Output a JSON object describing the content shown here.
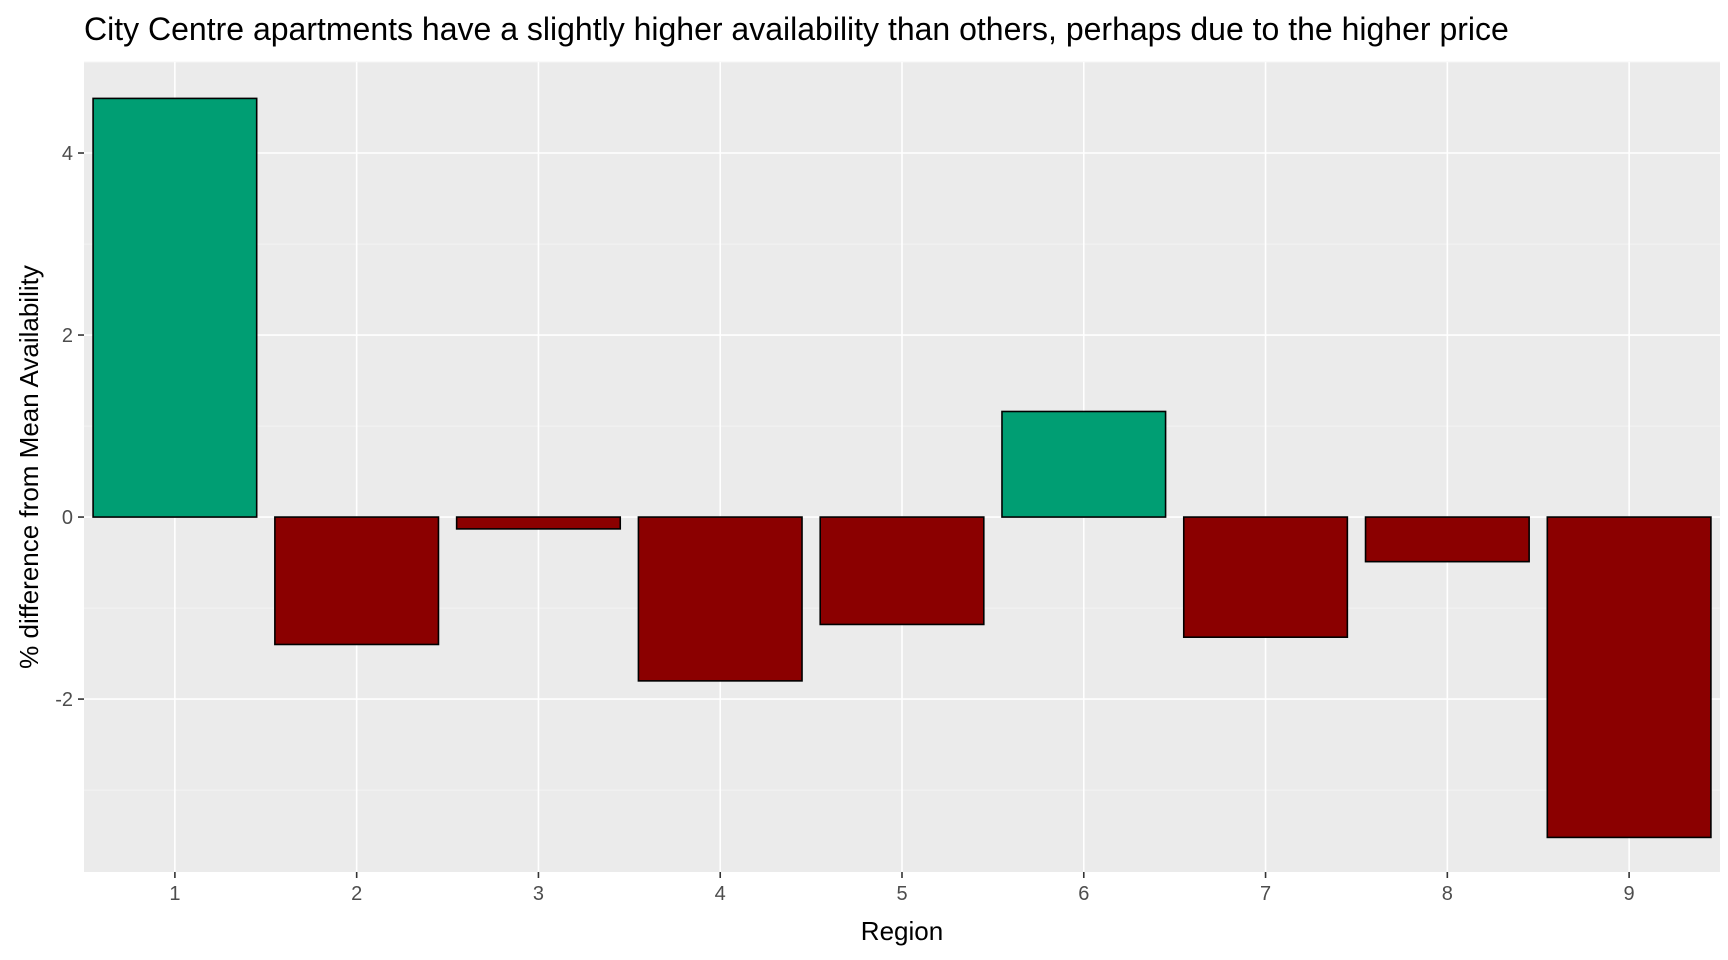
{
  "chart_data": {
    "type": "bar",
    "title": "City Centre apartments have a slightly higher availability than others, perhaps due to the higher price",
    "xlabel": "Region",
    "ylabel": "% difference from Mean Availability",
    "categories": [
      "1",
      "2",
      "3",
      "4",
      "5",
      "6",
      "7",
      "8",
      "9"
    ],
    "values": [
      4.6,
      -1.4,
      -0.13,
      -1.8,
      -1.18,
      1.16,
      -1.32,
      -0.49,
      -3.52
    ],
    "ylim": [
      -3.9,
      5.0
    ],
    "yticks": [
      -2,
      0,
      2,
      4
    ],
    "ytick_labels": [
      "-2",
      "0",
      "2",
      "4"
    ],
    "grid": true,
    "legend": "none",
    "colors": {
      "positive": "#009E73",
      "negative": "#8B0000",
      "panel": "#EBEBEB",
      "grid": "#FFFFFF"
    }
  }
}
